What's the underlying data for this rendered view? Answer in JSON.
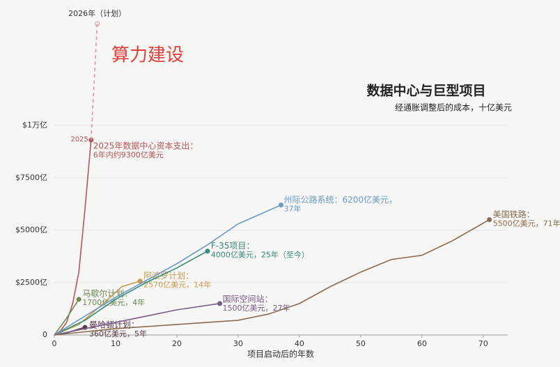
{
  "chart_data": {
    "type": "line",
    "title": "数据中心与巨型项目",
    "subtitle": "经通胀调整后的成本，十亿美元",
    "overlay_text": "算力建设",
    "xlabel": "项目启动后的年数",
    "xlim": [
      0,
      74
    ],
    "xticks": [
      0,
      10,
      20,
      30,
      40,
      50,
      60,
      70
    ],
    "ylim": [
      0,
      15000
    ],
    "yticks": [
      0,
      {
        "value": 2500,
        "label": "$2500亿"
      },
      {
        "value": 5000,
        "label": "$5000亿"
      },
      {
        "value": 7500,
        "label": "$7500亿"
      },
      {
        "value": 10000,
        "label": "$1万亿"
      }
    ],
    "grid": true,
    "series": [
      {
        "color": "#b5545c",
        "x": [
          0,
          1,
          2,
          3,
          4,
          5,
          6
        ],
        "values": [
          0,
          200,
          600,
          1500,
          3000,
          6000,
          9300
        ],
        "point_label": "2025",
        "annotation": [
          "2025年数据中心资本支出：",
          "6年内约9300亿美元"
        ]
      },
      {
        "color": "#d89a9e",
        "dashed": true,
        "x": [
          6,
          7
        ],
        "values": [
          9300,
          14850
        ],
        "point_label": "2026年（计划）"
      },
      {
        "color": "#6a8a50",
        "x": [
          0,
          2,
          4
        ],
        "values": [
          0,
          800,
          1700
        ],
        "annotation": [
          "马歇尔计划：",
          "1700亿美元，4年"
        ]
      },
      {
        "color": "#5a3a4a",
        "x": [
          0,
          2,
          4,
          5
        ],
        "values": [
          0,
          100,
          280,
          360
        ],
        "annotation": [
          "曼哈顿计划：",
          "360亿美元，5年"
        ]
      },
      {
        "color": "#c89a50",
        "x": [
          0,
          4,
          8,
          11,
          14
        ],
        "values": [
          0,
          500,
          1500,
          2300,
          2570
        ],
        "annotation": [
          "阿波罗计划：",
          "2570亿美元，14年"
        ]
      },
      {
        "color": "#3a8a7a",
        "x": [
          0,
          5,
          10,
          15,
          20,
          25
        ],
        "values": [
          0,
          700,
          1700,
          2500,
          3200,
          4000
        ],
        "annotation": [
          "F-35项目：",
          "4000亿美元，25年（至今）"
        ]
      },
      {
        "color": "#6a9ac8",
        "x": [
          0,
          5,
          10,
          15,
          20,
          25,
          30,
          37
        ],
        "values": [
          0,
          900,
          1800,
          2600,
          3400,
          4300,
          5300,
          6200
        ],
        "annotation": [
          "州际公路系统：6200亿美元，",
          "37年"
        ]
      },
      {
        "color": "#7a5a8a",
        "x": [
          0,
          5,
          10,
          15,
          20,
          27
        ],
        "values": [
          0,
          300,
          600,
          900,
          1200,
          1500
        ],
        "annotation": [
          "国际空间站：",
          "1500亿美元，27年"
        ]
      },
      {
        "color": "#8a6a50",
        "x": [
          0,
          10,
          20,
          30,
          35,
          40,
          45,
          50,
          55,
          60,
          65,
          71
        ],
        "values": [
          0,
          300,
          500,
          700,
          1000,
          1500,
          2300,
          3000,
          3600,
          3800,
          4500,
          5500
        ],
        "annotation": [
          "美国铁路：",
          "5500亿美元，71年"
        ]
      }
    ]
  }
}
